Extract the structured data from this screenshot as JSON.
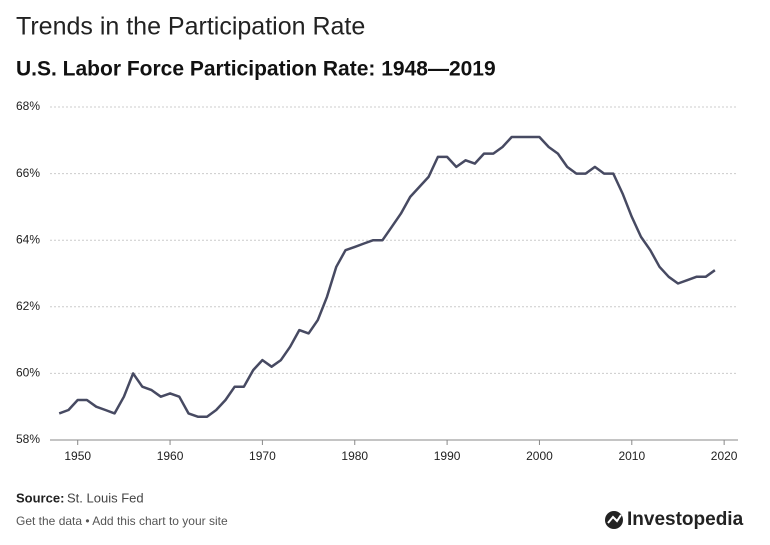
{
  "chart_data": {
    "type": "line",
    "title": "Trends in the Participation Rate",
    "subtitle": "U.S. Labor Force Participation Rate: 1948—2019",
    "x": [
      1948,
      1949,
      1950,
      1951,
      1952,
      1953,
      1954,
      1955,
      1956,
      1957,
      1958,
      1959,
      1960,
      1961,
      1962,
      1963,
      1964,
      1965,
      1966,
      1967,
      1968,
      1969,
      1970,
      1971,
      1972,
      1973,
      1974,
      1975,
      1976,
      1977,
      1978,
      1979,
      1980,
      1981,
      1982,
      1983,
      1984,
      1985,
      1986,
      1987,
      1988,
      1989,
      1990,
      1991,
      1992,
      1993,
      1994,
      1995,
      1996,
      1997,
      1998,
      1999,
      2000,
      2001,
      2002,
      2003,
      2004,
      2005,
      2006,
      2007,
      2008,
      2009,
      2010,
      2011,
      2012,
      2013,
      2014,
      2015,
      2016,
      2017,
      2018,
      2019
    ],
    "series": [
      {
        "name": "Labor Force Participation Rate",
        "color": "#474a62",
        "values": [
          58.8,
          58.9,
          59.2,
          59.2,
          59.0,
          58.9,
          58.8,
          59.3,
          60.0,
          59.6,
          59.5,
          59.3,
          59.4,
          59.3,
          58.8,
          58.7,
          58.7,
          58.9,
          59.2,
          59.6,
          59.6,
          60.1,
          60.4,
          60.2,
          60.4,
          60.8,
          61.3,
          61.2,
          61.6,
          62.3,
          63.2,
          63.7,
          63.8,
          63.9,
          64.0,
          64.0,
          64.4,
          64.8,
          65.3,
          65.6,
          65.9,
          66.5,
          66.5,
          66.2,
          66.4,
          66.3,
          66.6,
          66.6,
          66.8,
          67.1,
          67.1,
          67.1,
          67.1,
          66.8,
          66.6,
          66.2,
          66.0,
          66.0,
          66.2,
          66.0,
          66.0,
          65.4,
          64.7,
          64.1,
          63.7,
          63.2,
          62.9,
          62.7,
          62.8,
          62.9,
          62.9,
          63.1
        ]
      }
    ],
    "xlim": [
      1947,
      2021.5
    ],
    "xticks": [
      1950,
      1960,
      1970,
      1980,
      1990,
      2000,
      2010,
      2020
    ],
    "ylim": [
      58,
      68
    ],
    "yticks": [
      {
        "value": 58,
        "label": "58%"
      },
      {
        "value": 60,
        "label": "60%"
      },
      {
        "value": 62,
        "label": "62%"
      },
      {
        "value": 64,
        "label": "64%"
      },
      {
        "value": 66,
        "label": "66%"
      },
      {
        "value": 68,
        "label": "68%"
      }
    ],
    "grid": true
  },
  "source_label": "Source:",
  "source": "St. Louis Fed",
  "footer": "Get the data • Add this chart to your site",
  "brand": "Investopedia"
}
